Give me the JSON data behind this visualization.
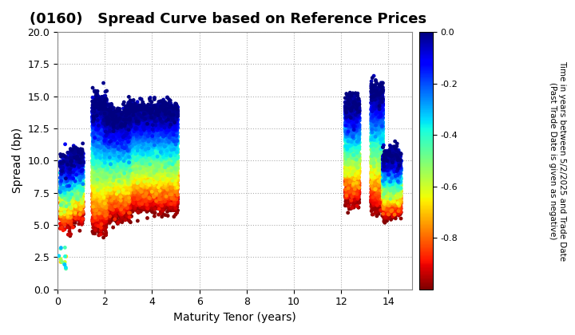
{
  "title": "(0160)   Spread Curve based on Reference Prices",
  "xlabel": "Maturity Tenor (years)",
  "ylabel": "Spread (bp)",
  "colorbar_label": "Time in years between 5/2/2025 and Trade Date\n(Past Trade Date is given as negative)",
  "xlim": [
    0,
    15
  ],
  "ylim": [
    0,
    20
  ],
  "xticks": [
    0,
    2,
    4,
    6,
    8,
    10,
    12,
    14
  ],
  "yticks": [
    0.0,
    2.5,
    5.0,
    7.5,
    10.0,
    12.5,
    15.0,
    17.5,
    20.0
  ],
  "cmap": "jet_r",
  "clim_min": -1.0,
  "clim_max": 0.0,
  "cticks": [
    0.0,
    -0.2,
    -0.4,
    -0.6,
    -0.8
  ],
  "background_color": "#ffffff",
  "grid_color": "#b0b0b0",
  "title_fontsize": 13,
  "label_fontsize": 10,
  "marker_size": 12
}
